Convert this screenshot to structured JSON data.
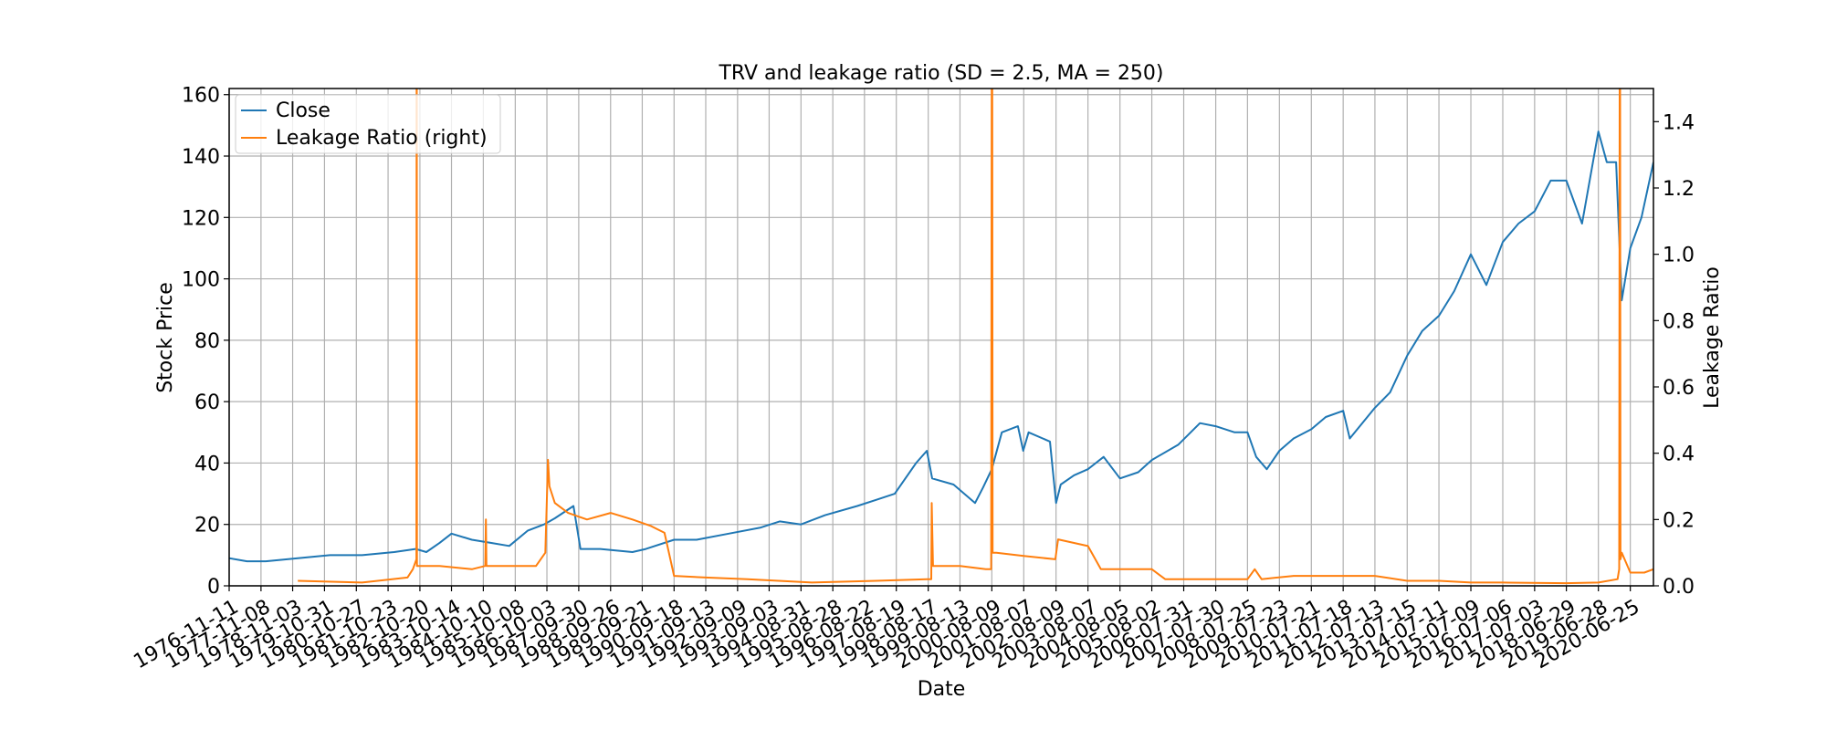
{
  "chart_data": {
    "type": "line",
    "title": "TRV and leakage ratio (SD = 2.5, MA = 250)",
    "xlabel": "Date",
    "ylabel": "Stock Price",
    "ylabel_right": "Leakage Ratio",
    "xlim": [
      "1976-11-11",
      "2021-03-15"
    ],
    "ylim": [
      0,
      162
    ],
    "ylim_right": [
      0,
      1.5
    ],
    "grid": true,
    "legend_placement": "top-left",
    "x_ticks": [
      "1976-11-11",
      "1977-11-08",
      "1978-11-03",
      "1979-10-31",
      "1980-10-27",
      "1981-10-23",
      "1982-10-20",
      "1983-10-14",
      "1984-10-10",
      "1985-10-08",
      "1986-10-03",
      "1987-09-30",
      "1988-09-26",
      "1989-09-21",
      "1990-09-18",
      "1991-09-13",
      "1992-09-09",
      "1993-09-03",
      "1994-08-31",
      "1995-08-28",
      "1996-08-22",
      "1997-08-19",
      "1998-08-17",
      "1999-08-13",
      "2000-08-09",
      "2001-08-07",
      "2002-08-09",
      "2003-08-07",
      "2004-08-05",
      "2005-08-02",
      "2006-07-31",
      "2007-07-30",
      "2008-07-25",
      "2009-07-23",
      "2010-07-21",
      "2011-07-18",
      "2012-07-13",
      "2013-07-15",
      "2014-07-11",
      "2015-07-09",
      "2016-07-06",
      "2017-07-03",
      "2018-06-29",
      "2019-06-28",
      "2020-06-25"
    ],
    "y_ticks": [
      0,
      20,
      40,
      60,
      80,
      100,
      120,
      140,
      160
    ],
    "y_ticks_right": [
      0.0,
      0.2,
      0.4,
      0.6,
      0.8,
      1.0,
      1.2,
      1.4
    ],
    "y_tick_labels_right": [
      "0.0",
      "0.2",
      "0.4",
      "0.6",
      "0.8",
      "1.0",
      "1.2",
      "1.4"
    ],
    "series": [
      {
        "name": "Close",
        "axis": "left",
        "color": "#1f77b4",
        "x": [
          "1976-11-11",
          "1977-06-01",
          "1978-01-01",
          "1979-01-01",
          "1980-01-01",
          "1981-01-01",
          "1982-01-01",
          "1982-09-01",
          "1983-01-01",
          "1983-06-01",
          "1983-10-14",
          "1984-06-01",
          "1985-01-01",
          "1985-08-01",
          "1986-03-01",
          "1986-09-01",
          "1987-01-01",
          "1987-08-01",
          "1987-10-20",
          "1988-06-01",
          "1989-06-01",
          "1989-11-01",
          "1990-09-18",
          "1991-06-01",
          "1992-06-01",
          "1993-06-01",
          "1994-01-01",
          "1994-08-31",
          "1995-06-01",
          "1996-06-01",
          "1997-01-01",
          "1997-08-01",
          "1998-04-01",
          "1998-08-01",
          "1998-10-01",
          "1999-06-01",
          "2000-02-01",
          "2000-05-01",
          "2000-08-09",
          "2000-12-01",
          "2001-06-01",
          "2001-08-01",
          "2001-10-01",
          "2002-06-01",
          "2002-08-09",
          "2002-10-01",
          "2003-03-01",
          "2003-08-07",
          "2004-02-01",
          "2004-08-05",
          "2005-03-01",
          "2005-08-02",
          "2006-06-01",
          "2007-02-01",
          "2007-07-30",
          "2008-03-01",
          "2008-07-25",
          "2008-11-01",
          "2009-03-01",
          "2009-07-23",
          "2010-01-01",
          "2010-07-21",
          "2011-01-01",
          "2011-07-18",
          "2011-10-01",
          "2012-07-13",
          "2013-01-01",
          "2013-07-15",
          "2014-01-01",
          "2014-07-11",
          "2015-01-01",
          "2015-07-09",
          "2016-01-01",
          "2016-07-06",
          "2017-01-01",
          "2017-07-03",
          "2018-01-01",
          "2018-06-29",
          "2018-12-24",
          "2019-06-28",
          "2019-10-01",
          "2020-01-15",
          "2020-03-20",
          "2020-06-25",
          "2020-10-30",
          "2021-03-15"
        ],
        "values": [
          9,
          8,
          8,
          9,
          10,
          10,
          11,
          12,
          11,
          14,
          17,
          15,
          14,
          13,
          18,
          20,
          22,
          26,
          12,
          12,
          11,
          12,
          15,
          15,
          17,
          19,
          21,
          20,
          23,
          26,
          28,
          30,
          40,
          44,
          35,
          33,
          27,
          32,
          38,
          50,
          52,
          44,
          50,
          47,
          27,
          33,
          36,
          38,
          42,
          35,
          37,
          41,
          46,
          53,
          52,
          50,
          50,
          42,
          38,
          44,
          48,
          51,
          55,
          57,
          48,
          58,
          63,
          75,
          83,
          88,
          96,
          108,
          98,
          112,
          118,
          122,
          132,
          132,
          118,
          148,
          138,
          138,
          93,
          110,
          120,
          138
        ]
      },
      {
        "name": "Leakage Ratio (right)",
        "axis": "right",
        "color": "#ff7f0e",
        "x": [
          "1979-01-01",
          "1981-01-01",
          "1982-06-01",
          "1982-08-01",
          "1982-09-10",
          "1982-09-12",
          "1982-09-14",
          "1982-09-16",
          "1983-06-01",
          "1984-06-01",
          "1984-11-01",
          "1984-11-08",
          "1984-11-15",
          "1985-06-01",
          "1986-01-01",
          "1986-06-01",
          "1986-09-15",
          "1986-10-15",
          "1986-11-01",
          "1987-01-01",
          "1987-06-01",
          "1988-01-01",
          "1988-09-26",
          "1989-06-01",
          "1990-01-01",
          "1990-06-01",
          "1990-09-18",
          "1991-09-13",
          "1993-01-01",
          "1995-01-01",
          "1997-01-01",
          "1998-08-01",
          "1998-09-20",
          "1998-09-25",
          "1998-10-10",
          "1999-08-13",
          "2000-06-01",
          "2000-08-01",
          "2000-08-08",
          "2000-08-10",
          "2000-08-14",
          "2000-08-18",
          "2000-10-01",
          "2001-08-07",
          "2002-08-01",
          "2002-09-01",
          "2003-08-07",
          "2004-01-01",
          "2004-08-05",
          "2005-08-02",
          "2006-01-01",
          "2007-07-30",
          "2008-07-25",
          "2008-10-15",
          "2009-01-01",
          "2010-01-01",
          "2011-07-18",
          "2012-07-13",
          "2013-07-15",
          "2014-07-11",
          "2015-07-09",
          "2016-07-06",
          "2018-06-29",
          "2019-06-28",
          "2020-02-01",
          "2020-02-20",
          "2020-02-25",
          "2020-03-01",
          "2020-03-05",
          "2020-03-20",
          "2020-06-25",
          "2020-12-01",
          "2021-03-15"
        ],
        "values": [
          0.015,
          0.01,
          0.025,
          0.05,
          0.08,
          1.5,
          1.5,
          0.06,
          0.06,
          0.05,
          0.06,
          0.2,
          0.06,
          0.06,
          0.06,
          0.06,
          0.1,
          0.38,
          0.3,
          0.25,
          0.22,
          0.2,
          0.22,
          0.2,
          0.18,
          0.16,
          0.03,
          0.025,
          0.02,
          0.01,
          0.015,
          0.02,
          0.02,
          0.25,
          0.06,
          0.06,
          0.05,
          0.05,
          1.5,
          1.5,
          1.5,
          0.1,
          0.1,
          0.09,
          0.08,
          0.14,
          0.12,
          0.05,
          0.05,
          0.05,
          0.02,
          0.02,
          0.02,
          0.05,
          0.02,
          0.03,
          0.03,
          0.03,
          0.015,
          0.015,
          0.01,
          0.01,
          0.008,
          0.01,
          0.02,
          0.05,
          1.5,
          1.5,
          0.08,
          0.1,
          0.04,
          0.04,
          0.05
        ]
      }
    ]
  }
}
